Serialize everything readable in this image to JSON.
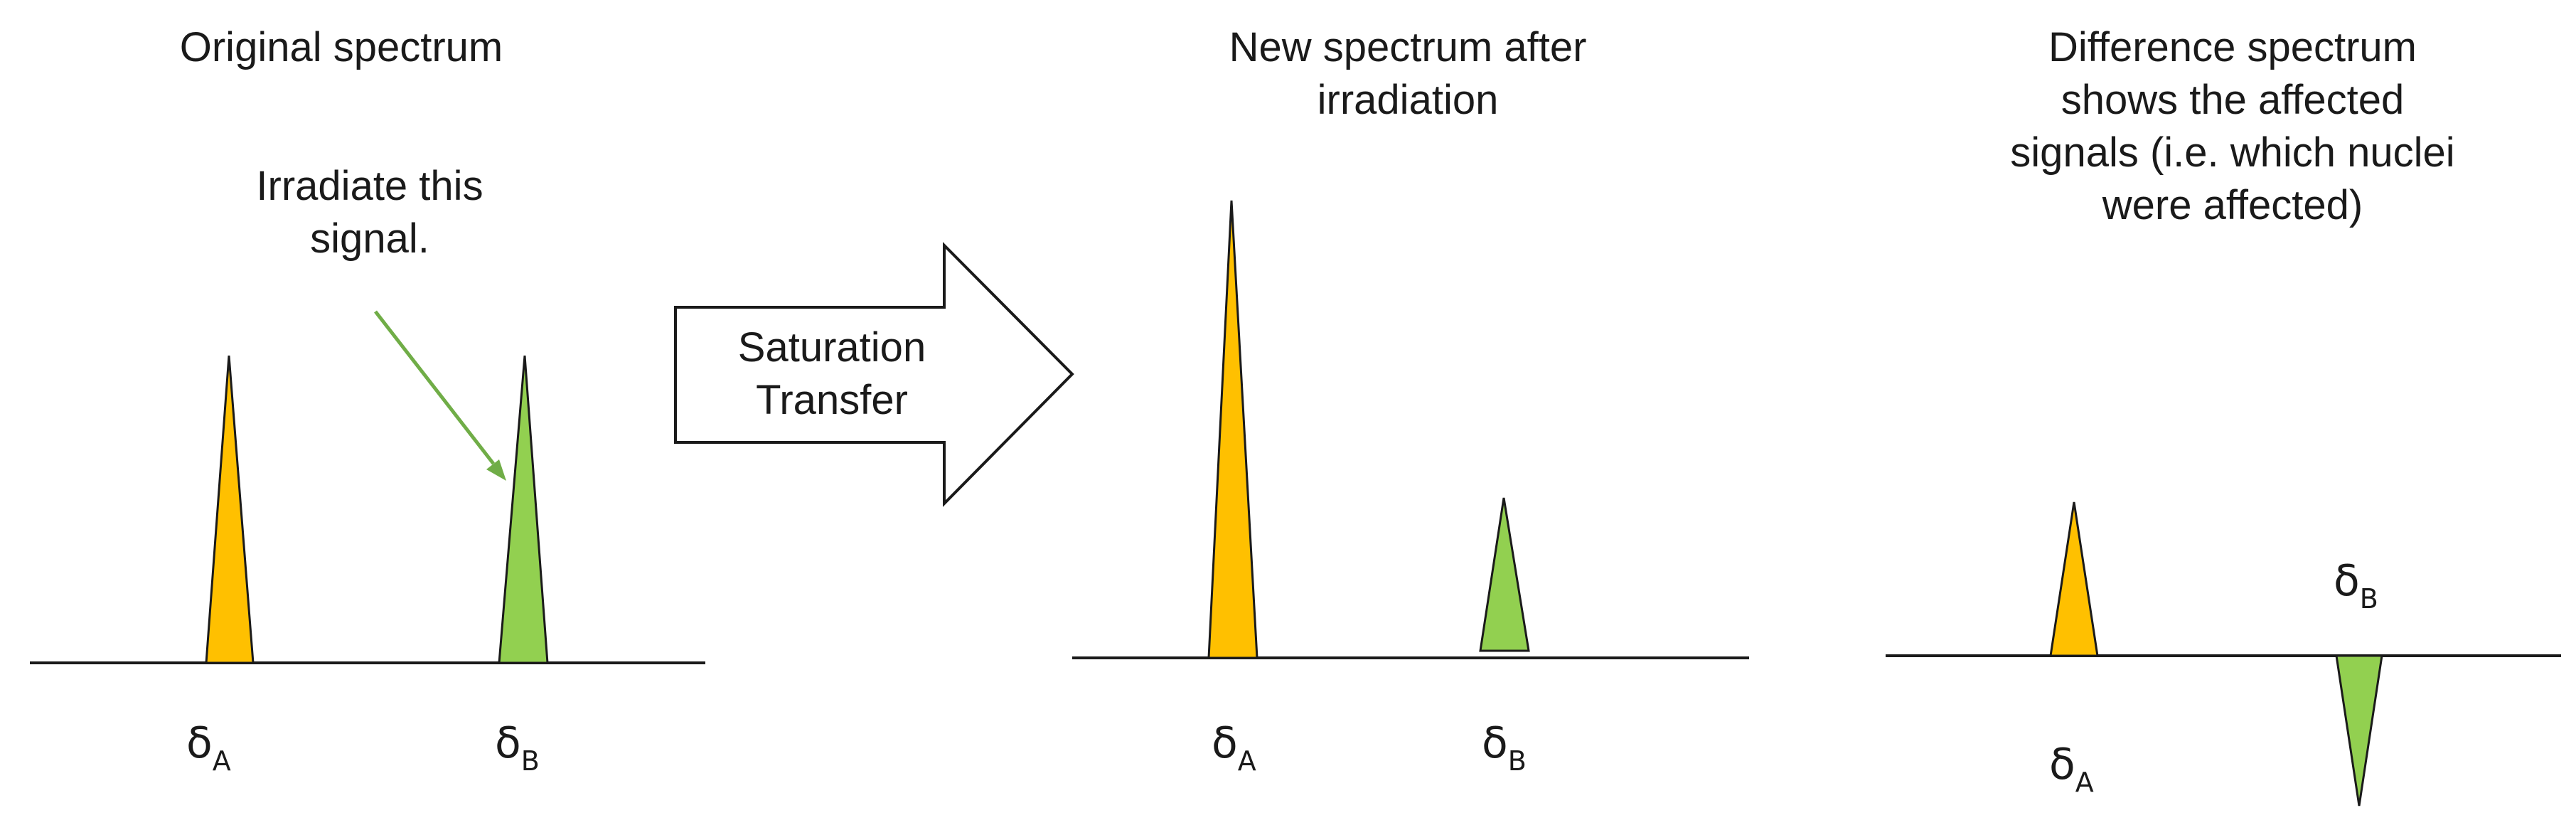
{
  "colors": {
    "peak_a": "#FFC000",
    "peak_b": "#92D050",
    "arrow_pointer": "#70AD47",
    "outline": "#1a1a1a"
  },
  "panels": {
    "original": {
      "title": "Original spectrum",
      "note_line1": "Irradiate this",
      "note_line2": "signal.",
      "peak_a": {
        "symbol": "δ",
        "subscript": "A"
      },
      "peak_b": {
        "symbol": "δ",
        "subscript": "B"
      }
    },
    "transfer": {
      "label_line1": "Saturation",
      "label_line2": "Transfer"
    },
    "after": {
      "title_line1": "New spectrum after",
      "title_line2": "irradiation",
      "peak_a": {
        "symbol": "δ",
        "subscript": "A"
      },
      "peak_b": {
        "symbol": "δ",
        "subscript": "B"
      }
    },
    "difference": {
      "title_line1": "Difference spectrum",
      "title_line2": "shows the affected",
      "title_line3": "signals (i.e. which nuclei",
      "title_line4": "were affected)",
      "peak_a": {
        "symbol": "δ",
        "subscript": "A"
      },
      "peak_b": {
        "symbol": "δ",
        "subscript": "B"
      }
    }
  }
}
